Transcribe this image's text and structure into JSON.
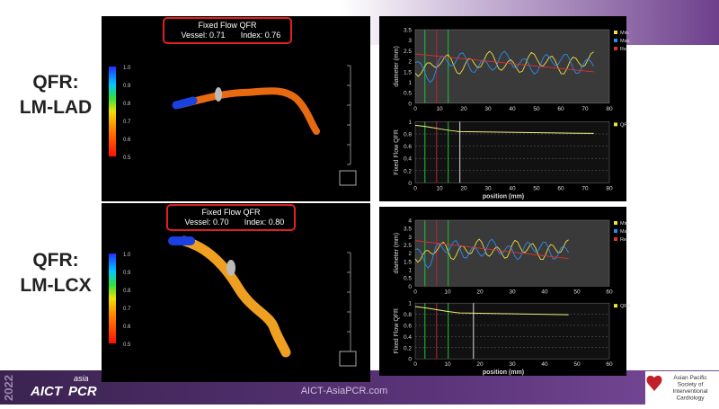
{
  "slide": {
    "year": "2022",
    "website": "AICT-AsiaPCR.com",
    "logo_left": {
      "aict": "AICT",
      "asia": "asia",
      "pcr": "PCR"
    },
    "logo_right": [
      "Asian Pacific",
      "Society of",
      "Interventional",
      "Cardiology"
    ]
  },
  "rows": [
    {
      "label": [
        "QFR:",
        "LM-LAD"
      ],
      "qfr_title": "Fixed Flow QFR",
      "vessel": "Vessel: 0.71",
      "index": "Index: 0.76",
      "colorbar": [
        "1.0",
        "0.9",
        "0.8",
        "0.7",
        "0.6",
        "0.5"
      ],
      "diameter_axis": {
        "label": "diameter (mm)",
        "ticks": [
          "3.5",
          "3",
          "2.5",
          "2",
          "1.5",
          "1",
          "0.5",
          "0"
        ]
      },
      "legend": [
        "Min.",
        "Max.",
        "Ref."
      ],
      "qfr_axis": {
        "label": "Fixed Flow QFR",
        "ticks": [
          "1",
          "0.8",
          "0.6",
          "0.4",
          "0.2",
          "0"
        ]
      },
      "qfr_legend": "QFR",
      "x_axis": {
        "label": "position (mm)",
        "ticks": [
          "0",
          "10",
          "20",
          "30",
          "40",
          "50",
          "60",
          "70",
          "80"
        ]
      }
    },
    {
      "label": [
        "QFR:",
        "LM-LCX"
      ],
      "qfr_title": "Fixed Flow QFR",
      "vessel": "Vessel: 0.70",
      "index": "Index: 0.80",
      "colorbar": [
        "1.0",
        "0.9",
        "0.8",
        "0.7",
        "0.6",
        "0.5"
      ],
      "diameter_axis": {
        "label": "diameter (mm)",
        "ticks": [
          "4",
          "3.5",
          "3",
          "2.5",
          "2",
          "1.5",
          "1",
          "0.5",
          "0"
        ]
      },
      "legend": [
        "Min.",
        "Max.",
        "Ref."
      ],
      "qfr_axis": {
        "label": "Fixed Flow QFR",
        "ticks": [
          "1",
          "0.8",
          "0.6",
          "0.4",
          "0.2",
          "0"
        ]
      },
      "qfr_legend": "QFR",
      "x_axis": {
        "label": "position (mm)",
        "ticks": [
          "0",
          "10",
          "20",
          "30",
          "40",
          "50",
          "60"
        ]
      }
    }
  ]
}
